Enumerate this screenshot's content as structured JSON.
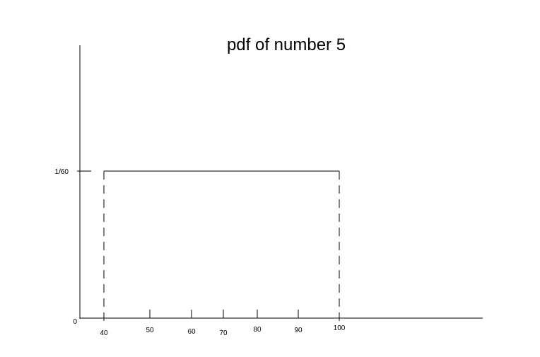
{
  "title": "pdf of number 5",
  "chart_data": {
    "type": "line",
    "title": "pdf of number 5",
    "xlabel": "",
    "ylabel": "",
    "x_ticks": [
      {
        "value": 40,
        "label": "40"
      },
      {
        "value": 50,
        "label": "50"
      },
      {
        "value": 60,
        "label": "60"
      },
      {
        "value": 70,
        "label": "70"
      },
      {
        "value": 80,
        "label": "80"
      },
      {
        "value": 90,
        "label": "90"
      },
      {
        "value": 100,
        "label": "100"
      }
    ],
    "y_ticks": [
      {
        "value": 0,
        "label": "0"
      },
      {
        "value": 0.016667,
        "label": "1/60"
      }
    ],
    "series": [
      {
        "x": [
          40,
          100
        ],
        "y": [
          0.016667,
          0.016667
        ]
      }
    ],
    "support": [
      40,
      100
    ],
    "density": 0.016667,
    "grid": false,
    "line_color": "#000000"
  }
}
